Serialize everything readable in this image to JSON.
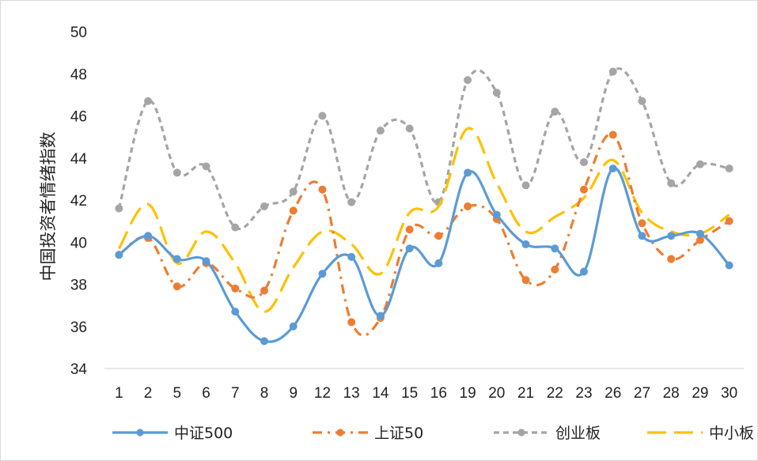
{
  "chart_data": {
    "type": "line",
    "title": "",
    "xlabel": "",
    "ylabel": "中国投资者情绪指数",
    "categories": [
      "1",
      "2",
      "5",
      "6",
      "7",
      "8",
      "9",
      "12",
      "13",
      "14",
      "15",
      "16",
      "19",
      "20",
      "21",
      "22",
      "23",
      "26",
      "27",
      "28",
      "29",
      "30"
    ],
    "ylim": [
      34,
      50
    ],
    "yticks": [
      34,
      36,
      38,
      40,
      42,
      44,
      46,
      48,
      50
    ],
    "grid": false,
    "legend_position": "bottom",
    "smooth": true,
    "series": [
      {
        "name": "中证500",
        "color": "#5b9bd5",
        "line_style": "solid",
        "marker": "circle",
        "values": [
          39.4,
          40.3,
          39.2,
          39.1,
          36.7,
          35.3,
          36.0,
          38.5,
          39.3,
          36.5,
          39.7,
          39.0,
          43.3,
          41.3,
          39.9,
          39.7,
          38.6,
          43.5,
          40.3,
          40.3,
          40.4,
          38.9
        ]
      },
      {
        "name": "上证50",
        "color": "#ed7d31",
        "line_style": "dash-dot",
        "marker": "circle",
        "values": [
          39.4,
          40.2,
          37.9,
          39.0,
          37.8,
          37.7,
          41.5,
          42.5,
          36.2,
          36.4,
          40.6,
          40.3,
          41.7,
          41.1,
          38.2,
          38.7,
          42.5,
          45.1,
          40.9,
          39.2,
          40.1,
          41.0
        ]
      },
      {
        "name": "创业板",
        "color": "#a5a5a5",
        "line_style": "dotted-dash",
        "marker": "circle",
        "values": [
          41.6,
          46.7,
          43.3,
          43.6,
          40.7,
          41.7,
          42.4,
          46.0,
          41.9,
          45.3,
          45.4,
          41.9,
          47.7,
          47.1,
          42.7,
          46.2,
          43.8,
          48.1,
          46.7,
          42.8,
          43.7,
          43.5
        ]
      },
      {
        "name": "中小板",
        "color": "#ffc000",
        "line_style": "long-dash",
        "marker": "none",
        "values": [
          39.7,
          41.8,
          39.0,
          40.5,
          39.0,
          36.7,
          38.8,
          40.5,
          39.9,
          38.5,
          41.4,
          41.7,
          45.4,
          42.8,
          40.5,
          41.2,
          42.1,
          43.9,
          41.4,
          40.5,
          40.4,
          41.3
        ]
      }
    ]
  }
}
